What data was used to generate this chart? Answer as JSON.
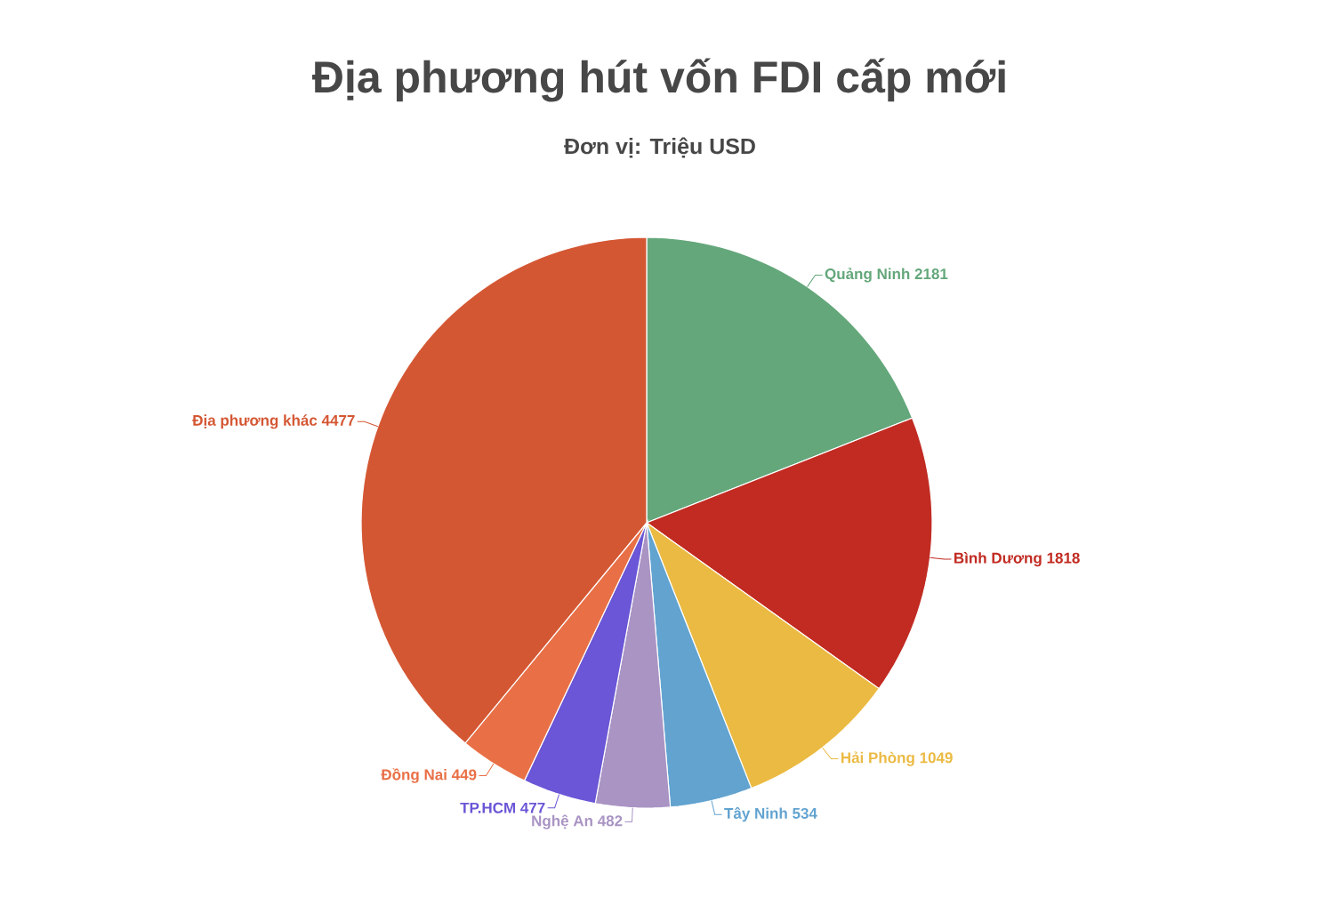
{
  "chart_data": {
    "type": "pie",
    "title": "Địa phương hút vốn FDI cấp mới",
    "subtitle": "Đơn vị: Triệu USD",
    "categories": [
      "Quảng Ninh",
      "Bình Dương",
      "Hải Phòng",
      "Tây Ninh",
      "Nghệ An",
      "TP.HCM",
      "Đồng Nai",
      "Địa phương khác"
    ],
    "values": [
      2181,
      1818,
      1049,
      534,
      482,
      477,
      449,
      4477
    ],
    "colors": [
      "#64a77b",
      "#c12b22",
      "#ebba42",
      "#62a3d0",
      "#a994c4",
      "#6a56d6",
      "#e97046",
      "#d45733"
    ],
    "data_labels": true
  }
}
